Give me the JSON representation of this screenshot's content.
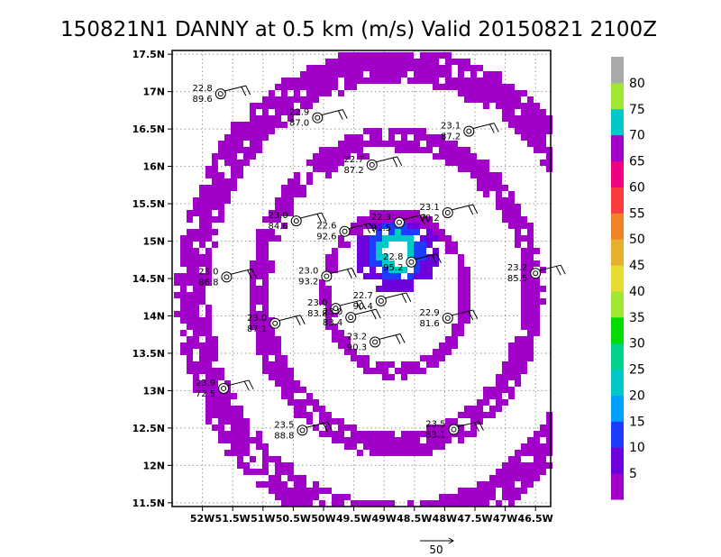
{
  "chart_data": {
    "type": "heatmap",
    "title": "150821N1 DANNY at 0.5 km (m/s) Valid 20150821 2100Z",
    "xlim": [
      -52.5,
      -46.25
    ],
    "ylim": [
      11.45,
      17.55
    ],
    "x_ticks": [
      {
        "v": -52,
        "label": "52W"
      },
      {
        "v": -51.5,
        "label": "51.5W"
      },
      {
        "v": -51,
        "label": "51W"
      },
      {
        "v": -50.5,
        "label": "50.5W"
      },
      {
        "v": -50,
        "label": "50W"
      },
      {
        "v": -49.5,
        "label": "49.5W"
      },
      {
        "v": -49,
        "label": "49W"
      },
      {
        "v": -48.5,
        "label": "48.5W"
      },
      {
        "v": -48,
        "label": "48W"
      },
      {
        "v": -47.5,
        "label": "47.5W"
      },
      {
        "v": -47,
        "label": "47W"
      },
      {
        "v": -46.5,
        "label": "46.5W"
      }
    ],
    "y_ticks": [
      {
        "v": 11.5,
        "label": "11.5N"
      },
      {
        "v": 12,
        "label": "12N"
      },
      {
        "v": 12.5,
        "label": "12.5N"
      },
      {
        "v": 13,
        "label": "13N"
      },
      {
        "v": 13.5,
        "label": "13.5N"
      },
      {
        "v": 14,
        "label": "14N"
      },
      {
        "v": 14.5,
        "label": "14.5N"
      },
      {
        "v": 15,
        "label": "15N"
      },
      {
        "v": 15.5,
        "label": "15.5N"
      },
      {
        "v": 16,
        "label": "16N"
      },
      {
        "v": 16.5,
        "label": "16.5N"
      },
      {
        "v": 17,
        "label": "17N"
      },
      {
        "v": 17.5,
        "label": "17.5N"
      }
    ],
    "grid": true,
    "colorbar": {
      "labels": [
        "5",
        "10",
        "15",
        "20",
        "25",
        "30",
        "35",
        "40",
        "45",
        "50",
        "55",
        "60",
        "65",
        "70",
        "75",
        "80"
      ],
      "colors": [
        "#a000c8",
        "#6e00dc",
        "#1e3cff",
        "#00a0ff",
        "#00c8c8",
        "#00d28c",
        "#00dc00",
        "#a0e632",
        "#e6dc32",
        "#e6af2d",
        "#f08228",
        "#fa3c3c",
        "#f00082",
        "#a000c8",
        "#00c8c8",
        "#a0e632",
        "#aaaaaa"
      ]
    },
    "ring_center": [
      -48.85,
      14.35
    ],
    "rings": [
      {
        "rx": 1.15,
        "ry": 1.05,
        "color": "#a000c8"
      },
      {
        "rx": 2.25,
        "ry": 2.05,
        "color": "#a000c8"
      },
      {
        "rx": 3.35,
        "ry": 3.05,
        "color": "#a000c8"
      }
    ],
    "core": {
      "lon": -48.85,
      "lat": 14.9,
      "rx": 0.55,
      "ry": 0.45
    },
    "stations": [
      {
        "lon": -51.7,
        "lat": 16.97,
        "t": "22.8",
        "w": "89.6"
      },
      {
        "lon": -50.1,
        "lat": 16.65,
        "t": "22.9",
        "w": "87.0"
      },
      {
        "lon": -47.6,
        "lat": 16.47,
        "t": "23.1",
        "w": "87.2"
      },
      {
        "lon": -49.2,
        "lat": 16.02,
        "t": "22.7",
        "w": "87.2"
      },
      {
        "lon": -50.45,
        "lat": 15.27,
        "t": "23.0",
        "w": "84.6"
      },
      {
        "lon": -49.65,
        "lat": 15.13,
        "t": "22.6",
        "w": "92.6"
      },
      {
        "lon": -48.75,
        "lat": 15.25,
        "t": "22.3",
        "w": "91.5"
      },
      {
        "lon": -47.95,
        "lat": 15.38,
        "t": "23.1",
        "w": "90.2"
      },
      {
        "lon": -48.55,
        "lat": 14.72,
        "t": "22.8",
        "w": "95.2"
      },
      {
        "lon": -49.95,
        "lat": 14.53,
        "t": "23.0",
        "w": "93.2"
      },
      {
        "lon": -51.6,
        "lat": 14.52,
        "t": "23.0",
        "w": "86.8"
      },
      {
        "lon": -46.5,
        "lat": 14.57,
        "t": "23.2",
        "w": "85.5"
      },
      {
        "lon": -49.05,
        "lat": 14.2,
        "t": "22.7",
        "w": "90.4"
      },
      {
        "lon": -49.8,
        "lat": 14.1,
        "t": "23.0",
        "w": "83.8"
      },
      {
        "lon": -49.55,
        "lat": 13.98,
        "t": "23.0",
        "w": "83.4"
      },
      {
        "lon": -50.8,
        "lat": 13.9,
        "t": "23.0",
        "w": "87.1"
      },
      {
        "lon": -47.95,
        "lat": 13.97,
        "t": "22.9",
        "w": "81.6"
      },
      {
        "lon": -49.15,
        "lat": 13.65,
        "t": "23.2",
        "w": "90.3"
      },
      {
        "lon": -51.65,
        "lat": 13.03,
        "t": "23.9",
        "w": "72.5"
      },
      {
        "lon": -50.35,
        "lat": 12.47,
        "t": "23.5",
        "w": "88.8"
      },
      {
        "lon": -47.85,
        "lat": 12.48,
        "t": "23.5",
        "w": "83.1"
      }
    ],
    "reference_vector": {
      "label": "50"
    }
  }
}
